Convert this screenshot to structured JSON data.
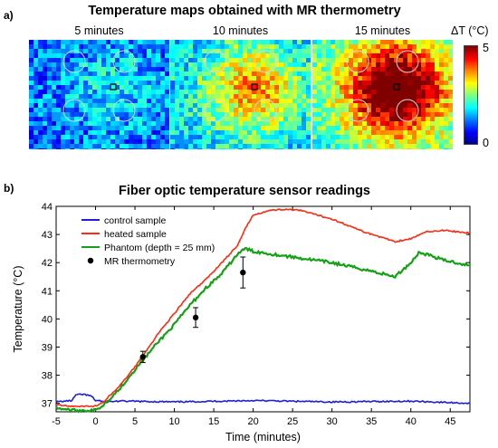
{
  "panel_a": {
    "label": "a)",
    "title": "Temperature maps obtained with MR thermometry",
    "maps": [
      {
        "label": "5 minutes",
        "intensity": 0.18
      },
      {
        "label": "10 minutes",
        "intensity": 0.55
      },
      {
        "label": "15 minutes",
        "intensity": 1.0
      }
    ],
    "colorbar": {
      "title": "ΔT (°C)",
      "min_label": "0",
      "max_label": "5",
      "colors": [
        "#7f0000",
        "#ff0000",
        "#ff8000",
        "#ffff00",
        "#80ff80",
        "#00ffff",
        "#0080ff",
        "#0000ff",
        "#00008f"
      ]
    }
  },
  "panel_b": {
    "label": "b)"
  },
  "chart_data": {
    "type": "line",
    "title": "Fiber optic temperature sensor readings",
    "xlabel": "Time (minutes)",
    "ylabel": "Temperature (°C)",
    "xlim": [
      -5,
      47.5
    ],
    "ylim": [
      36.7,
      44
    ],
    "xticks": [
      "-5",
      "0",
      "5",
      "10",
      "15",
      "20",
      "25",
      "30",
      "35",
      "40",
      "45"
    ],
    "yticks": [
      "37",
      "38",
      "39",
      "40",
      "41",
      "42",
      "43",
      "44"
    ],
    "grid": false,
    "legend_position": "top-left",
    "series": [
      {
        "name": "control sample",
        "color": "#1f1fd6",
        "x": [
          -5,
          -3,
          -2.5,
          -1.5,
          -0.5,
          0,
          0.5,
          1,
          3,
          10,
          20,
          30,
          40,
          47.5
        ],
        "y": [
          37.05,
          37.1,
          37.3,
          37.32,
          37.25,
          37.1,
          37.1,
          37.05,
          37.08,
          37.05,
          37.1,
          37.05,
          37.08,
          37.0
        ]
      },
      {
        "name": "heated sample",
        "color": "#ff2a12",
        "x": [
          -5,
          -3,
          0,
          1,
          3,
          5,
          8,
          10,
          12,
          14,
          16,
          18,
          19,
          20,
          22,
          24,
          26,
          30,
          34,
          38,
          40,
          42,
          44,
          47.5
        ],
        "y": [
          36.95,
          36.9,
          36.9,
          37.05,
          37.6,
          38.3,
          39.5,
          40.2,
          40.9,
          41.4,
          42.0,
          42.6,
          43.2,
          43.7,
          43.85,
          43.9,
          43.85,
          43.55,
          43.1,
          42.75,
          42.85,
          43.1,
          43.15,
          43.05
        ]
      },
      {
        "name": "Phantom (depth = 25 mm)",
        "color": "#15a115",
        "x": [
          -5,
          -3,
          0,
          1,
          3,
          5,
          8,
          10,
          12,
          14,
          16,
          18,
          19,
          20,
          25,
          30,
          35,
          38,
          40,
          41,
          42,
          44,
          47.5
        ],
        "y": [
          36.85,
          36.75,
          36.75,
          36.95,
          37.5,
          38.2,
          39.2,
          39.8,
          40.5,
          41.1,
          41.6,
          42.3,
          42.5,
          42.4,
          42.2,
          42.0,
          41.7,
          41.5,
          42.0,
          42.35,
          42.3,
          42.1,
          41.9
        ]
      }
    ],
    "mr_thermometry": {
      "name": "MR thermometry",
      "color": "#000000",
      "points": [
        {
          "x": 6,
          "y": 38.65,
          "err": 0.2
        },
        {
          "x": 12.7,
          "y": 40.05,
          "err": 0.35
        },
        {
          "x": 18.7,
          "y": 41.65,
          "err": 0.55
        }
      ]
    }
  }
}
